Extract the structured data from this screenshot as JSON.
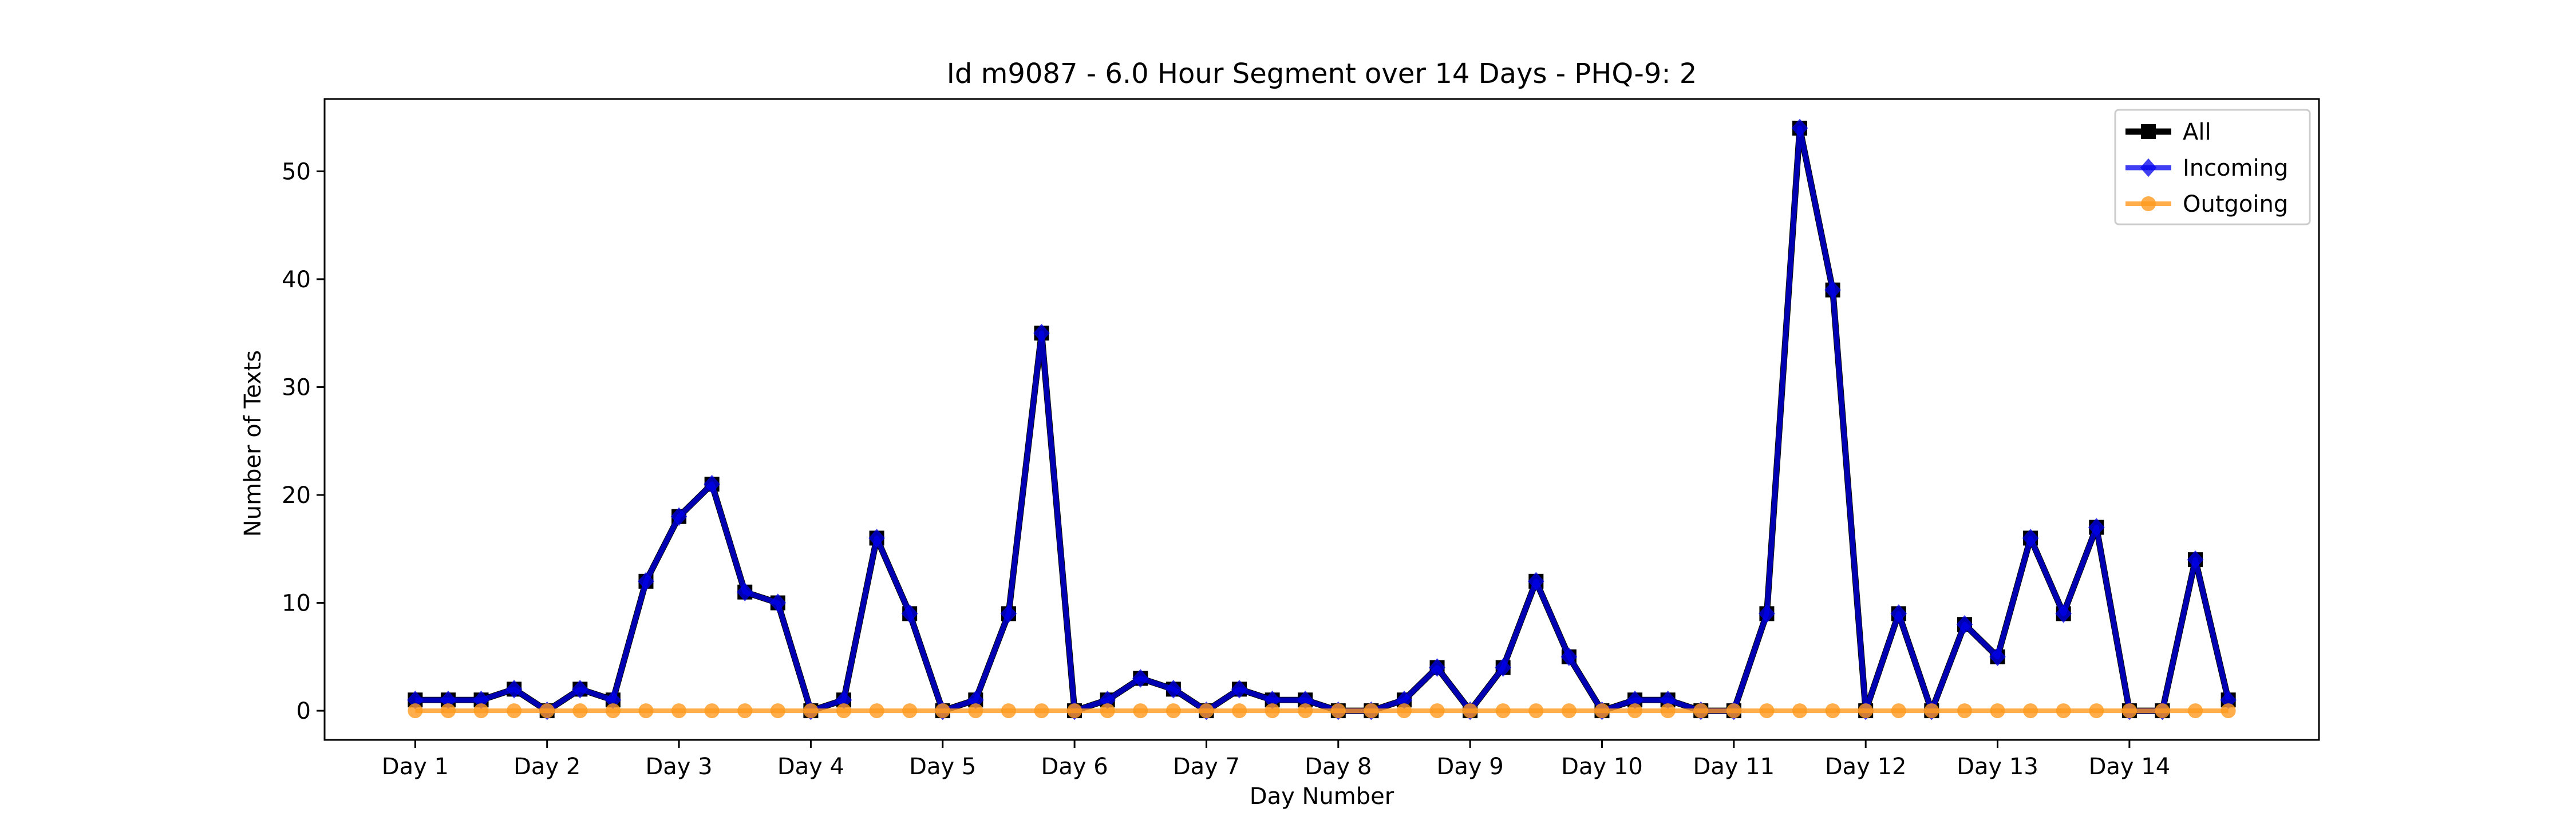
{
  "chart_data": {
    "type": "line",
    "title": "Id m9087 - 6.0 Hour Segment over 14 Days - PHQ-9: 2",
    "xlabel": "Day Number",
    "ylabel": "Number of Texts",
    "ylim": [
      -2.7,
      56.7
    ],
    "xlim": [
      -2.75,
      57.75
    ],
    "yticks": [
      0,
      10,
      20,
      30,
      40,
      50
    ],
    "xticks": [
      {
        "pos": 0,
        "label": "Day 1"
      },
      {
        "pos": 4,
        "label": "Day 2"
      },
      {
        "pos": 8,
        "label": "Day 3"
      },
      {
        "pos": 12,
        "label": "Day 4"
      },
      {
        "pos": 16,
        "label": "Day 5"
      },
      {
        "pos": 20,
        "label": "Day 6"
      },
      {
        "pos": 24,
        "label": "Day 7"
      },
      {
        "pos": 28,
        "label": "Day 8"
      },
      {
        "pos": 32,
        "label": "Day 9"
      },
      {
        "pos": 36,
        "label": "Day 10"
      },
      {
        "pos": 40,
        "label": "Day 11"
      },
      {
        "pos": 44,
        "label": "Day 12"
      },
      {
        "pos": 48,
        "label": "Day 13"
      },
      {
        "pos": 52,
        "label": "Day 14"
      }
    ],
    "grid": false,
    "legend_position": "top-right",
    "series": [
      {
        "name": "All",
        "color": "#000000",
        "marker": "square",
        "values": [
          1,
          1,
          1,
          2,
          0,
          2,
          1,
          12,
          18,
          21,
          11,
          10,
          0,
          1,
          16,
          9,
          0,
          1,
          9,
          35,
          0,
          1,
          3,
          2,
          0,
          2,
          1,
          1,
          0,
          0,
          1,
          4,
          0,
          4,
          12,
          5,
          0,
          1,
          1,
          0,
          0,
          9,
          54,
          39,
          0,
          9,
          0,
          8,
          5,
          16,
          9,
          17,
          0,
          0,
          14,
          1
        ]
      },
      {
        "name": "Incoming",
        "color": "#0000ee",
        "marker": "diamond",
        "values": [
          1,
          1,
          1,
          2,
          0,
          2,
          1,
          12,
          18,
          21,
          11,
          10,
          0,
          1,
          16,
          9,
          0,
          1,
          9,
          35,
          0,
          1,
          3,
          2,
          0,
          2,
          1,
          1,
          0,
          0,
          1,
          4,
          0,
          4,
          12,
          5,
          0,
          1,
          1,
          0,
          0,
          9,
          54,
          39,
          0,
          9,
          0,
          8,
          5,
          16,
          9,
          17,
          0,
          0,
          14,
          1
        ]
      },
      {
        "name": "Outgoing",
        "color": "#ff9a1e",
        "marker": "circle",
        "values": [
          0,
          0,
          0,
          0,
          0,
          0,
          0,
          0,
          0,
          0,
          0,
          0,
          0,
          0,
          0,
          0,
          0,
          0,
          0,
          0,
          0,
          0,
          0,
          0,
          0,
          0,
          0,
          0,
          0,
          0,
          0,
          0,
          0,
          0,
          0,
          0,
          0,
          0,
          0,
          0,
          0,
          0,
          0,
          0,
          0,
          0,
          0,
          0,
          0,
          0,
          0,
          0,
          0,
          0,
          0,
          0
        ]
      }
    ]
  }
}
